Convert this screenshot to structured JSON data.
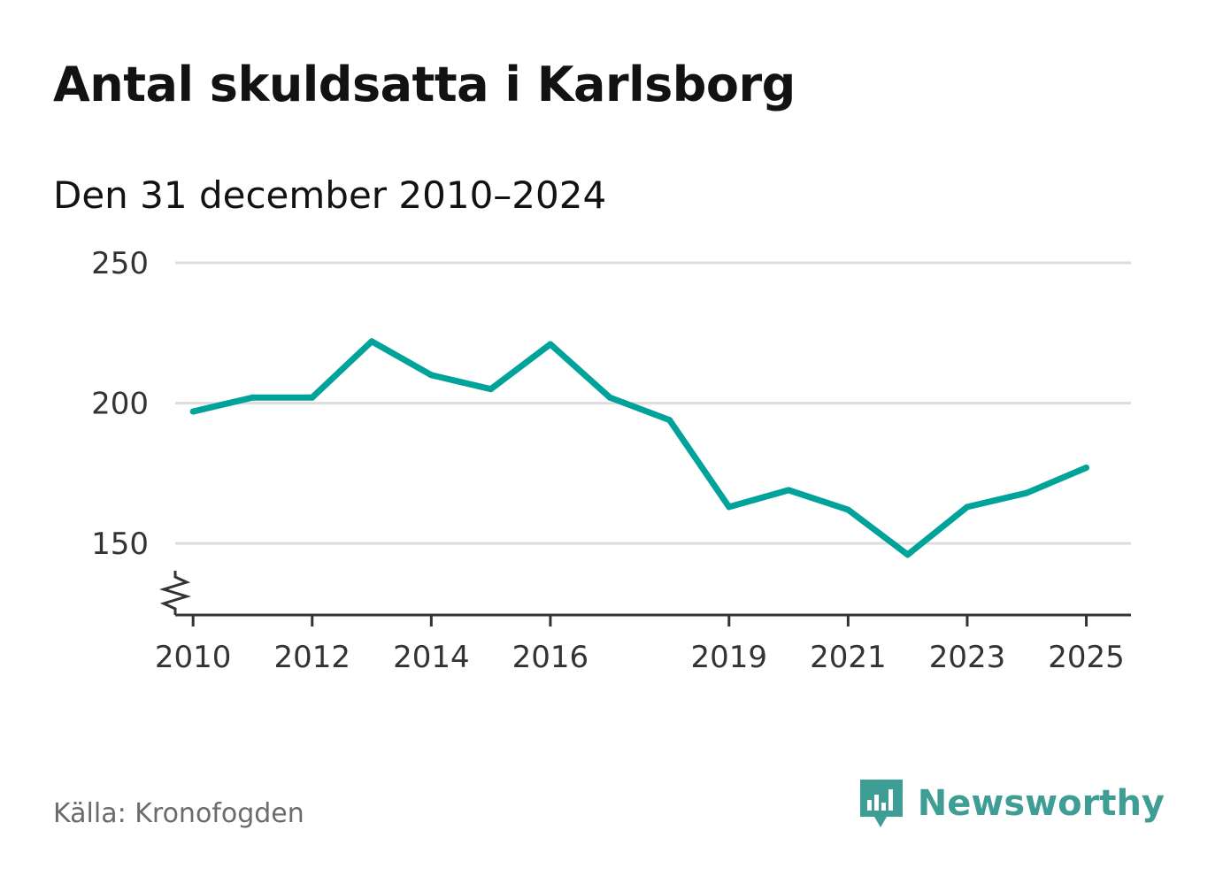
{
  "header": {
    "title": "Antal skuldsatta i Karlsborg",
    "subtitle": "Den 31 december 2010–2024"
  },
  "footer": {
    "source": "Källa: Kronofogden",
    "brand": "Newsworthy",
    "brand_icon": "newsworthy-logo-icon"
  },
  "colors": {
    "line": "#00a39a",
    "grid": "#dddddd",
    "axis": "#333333",
    "brand": "#3e9d95"
  },
  "chart_data": {
    "type": "line",
    "title": "Antal skuldsatta i Karlsborg",
    "subtitle": "Den 31 december 2010–2024",
    "xlabel": "",
    "ylabel": "",
    "x": [
      2010,
      2011,
      2012,
      2013,
      2014,
      2015,
      2016,
      2017,
      2018,
      2019,
      2020,
      2021,
      2022,
      2023,
      2024,
      2025
    ],
    "series": [
      {
        "name": "Antal skuldsatta",
        "values": [
          197,
          202,
          202,
          222,
          210,
          205,
          221,
          202,
          194,
          163,
          169,
          162,
          146,
          163,
          168,
          177
        ]
      }
    ],
    "xticks": [
      "2010",
      "2012",
      "2014",
      "2016",
      "2019",
      "2021",
      "2023",
      "2025"
    ],
    "yticks": [
      "150",
      "200",
      "250"
    ],
    "xlim": [
      2009.7,
      2025.75
    ],
    "ylim": [
      124.5,
      250
    ],
    "y_axis_break": true,
    "grid": true,
    "legend": "none"
  }
}
